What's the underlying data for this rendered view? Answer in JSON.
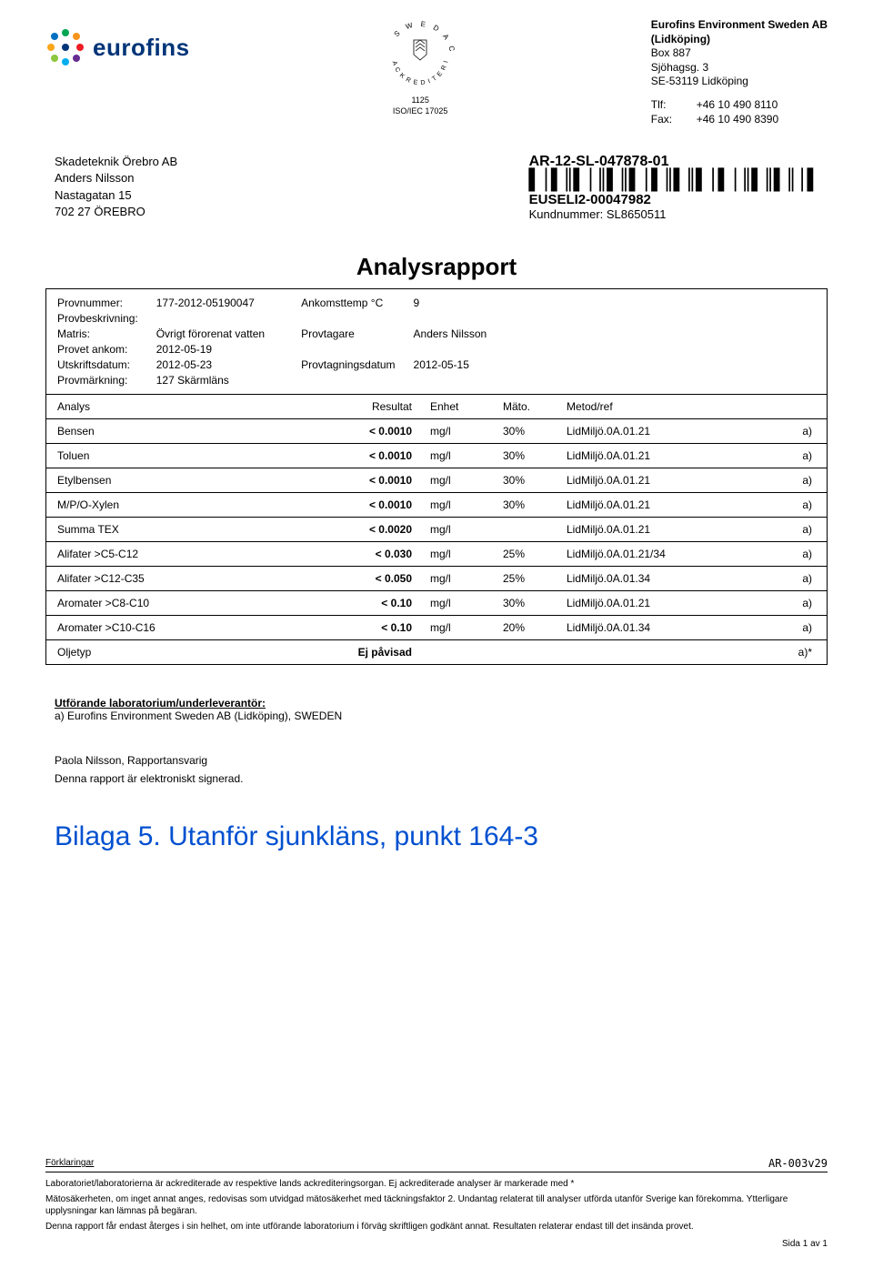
{
  "brand": {
    "name": "eurofins",
    "color": "#003478",
    "dot_colors": [
      "#0070c0",
      "#00a651",
      "#f7941d",
      "#ed1c24",
      "#662d91",
      "#00aeef",
      "#8dc63f",
      "#faa61a"
    ]
  },
  "accreditation": {
    "ring_top": "SWEDAC",
    "ring_bottom": "ACKREDITERING",
    "number": "1125",
    "iso": "ISO/IEC 17025"
  },
  "lab": {
    "name": "Eurofins Environment Sweden AB",
    "city_paren": "(Lidköping)",
    "box": "Box 887",
    "street": "Sjöhagsg. 3",
    "postal": "SE-53119 Lidköping",
    "tlf_label": "Tlf:",
    "tlf": "+46 10 490 8110",
    "fax_label": "Fax:",
    "fax": "+46 10 490 8390"
  },
  "customer": {
    "name": "Skadeteknik Örebro AB",
    "contact": "Anders Nilsson",
    "street": "Nastagatan 15",
    "postal": "702 27 ÖREBRO"
  },
  "report": {
    "ar": "AR-12-SL-047878-01",
    "euseli": "EUSELI2-00047982",
    "kundnr_label": "Kundnummer: SL8650511",
    "title": "Analysrapport"
  },
  "meta_left": {
    "provnummer_lbl": "Provnummer:",
    "provnummer": "177-2012-05190047",
    "provbesk_lbl": "Provbeskrivning:",
    "provbesk": "",
    "matris_lbl": "Matris:",
    "matris": "Övrigt förorenat vatten",
    "ankom_lbl": "Provet ankom:",
    "ankom": "2012-05-19",
    "utskr_lbl": "Utskriftsdatum:",
    "utskr": "2012-05-23",
    "mark_lbl": "Provmärkning:",
    "mark": "127 Skärmläns"
  },
  "meta_right": {
    "temp_lbl": "Ankomsttemp °C",
    "temp": "9",
    "provtagare_lbl": "Provtagare",
    "provtagare": "Anders Nilsson",
    "provdatum_lbl": "Provtagningsdatum",
    "provdatum": "2012-05-15"
  },
  "columns": {
    "analys": "Analys",
    "resultat": "Resultat",
    "enhet": "Enhet",
    "mato": "Mäto.",
    "metod": "Metod/ref"
  },
  "rows": [
    {
      "analys": "Bensen",
      "res": "< 0.0010",
      "unit": "mg/l",
      "mato": "30%",
      "method": "LidMiljö.0A.01.21",
      "note": "a)"
    },
    {
      "analys": "Toluen",
      "res": "< 0.0010",
      "unit": "mg/l",
      "mato": "30%",
      "method": "LidMiljö.0A.01.21",
      "note": "a)"
    },
    {
      "analys": "Etylbensen",
      "res": "< 0.0010",
      "unit": "mg/l",
      "mato": "30%",
      "method": "LidMiljö.0A.01.21",
      "note": "a)"
    },
    {
      "analys": "M/P/O-Xylen",
      "res": "< 0.0010",
      "unit": "mg/l",
      "mato": "30%",
      "method": "LidMiljö.0A.01.21",
      "note": "a)"
    },
    {
      "analys": "Summa TEX",
      "res": "< 0.0020",
      "unit": "mg/l",
      "mato": "",
      "method": "LidMiljö.0A.01.21",
      "note": "a)"
    },
    {
      "analys": "Alifater >C5-C12",
      "res": "< 0.030",
      "unit": "mg/l",
      "mato": "25%",
      "method": "LidMiljö.0A.01.21/34",
      "note": "a)"
    },
    {
      "analys": "Alifater >C12-C35",
      "res": "< 0.050",
      "unit": "mg/l",
      "mato": "25%",
      "method": "LidMiljö.0A.01.34",
      "note": "a)"
    },
    {
      "analys": "Aromater >C8-C10",
      "res": "< 0.10",
      "unit": "mg/l",
      "mato": "30%",
      "method": "LidMiljö.0A.01.21",
      "note": "a)"
    },
    {
      "analys": "Aromater >C10-C16",
      "res": "< 0.10",
      "unit": "mg/l",
      "mato": "20%",
      "method": "LidMiljö.0A.01.34",
      "note": "a)"
    },
    {
      "analys": "Oljetyp",
      "res": "Ej påvisad",
      "unit": "",
      "mato": "",
      "method": "",
      "note": "a)*"
    }
  ],
  "performing": {
    "heading": "Utförande laboratorium/underleverantör:",
    "line": "a)  Eurofins Environment Sweden AB (Lidköping), SWEDEN"
  },
  "signature": {
    "name": "Paola Nilsson, Rapportansvarig",
    "note": "Denna rapport är elektroniskt signerad."
  },
  "bilaga": "Bilaga 5. Utanför sjunkläns, punkt 164-3",
  "footer": {
    "forkl": "Förklaringar",
    "code": "AR-003v29",
    "line1": "Laboratoriet/laboratorierna är ackrediterade av respektive lands ackrediteringsorgan. Ej ackrediterade analyser är markerade med *",
    "line2": "Mätosäkerheten, om inget annat anges, redovisas som utvidgad mätosäkerhet med täckningsfaktor 2. Undantag relaterat till analyser utförda utanför Sverige kan förekomma. Ytterligare upplysningar kan lämnas på begäran.",
    "line3": "Denna rapport får endast återges i sin helhet, om inte utförande laboratorium i förväg skriftligen godkänt annat. Resultaten relaterar endast till det insända provet.",
    "page": "Sida 1 av 1"
  }
}
